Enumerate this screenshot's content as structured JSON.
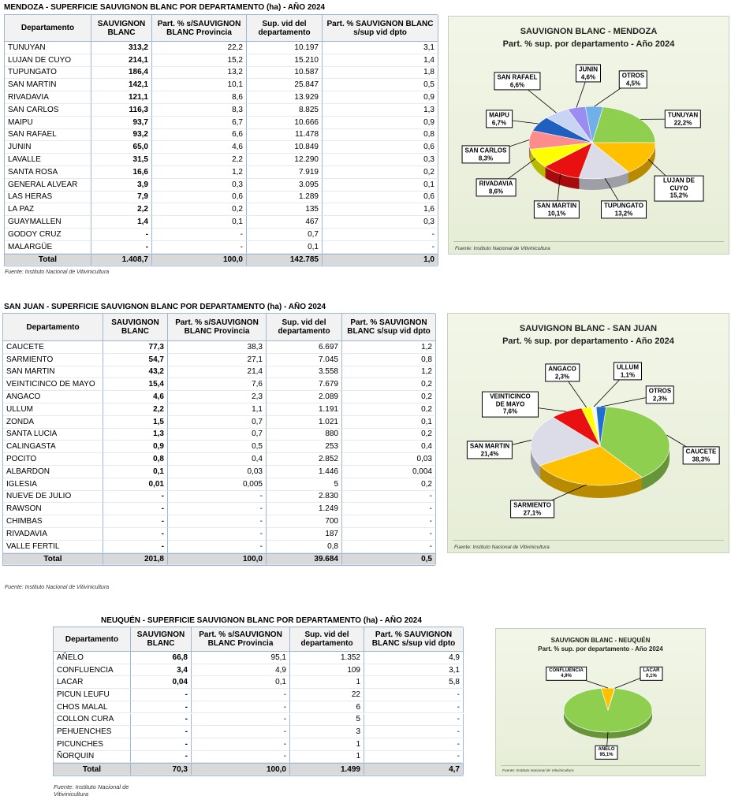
{
  "sections": [
    {
      "title": "MENDOZA - SUPERFICIE SAUVIGNON BLANC POR DEPARTAMENTO (ha) - AÑO 2024",
      "table": {
        "header": [
          "Departamento",
          "SAUVIGNON BLANC",
          "Part. % s/SAUVIGNON BLANC Provincia",
          "Sup. vid del departamento",
          "Part. % SAUVIGNON BLANC s/sup vid dpto"
        ],
        "rows": [
          [
            "TUNUYAN",
            "313,2",
            "22,2",
            "10.197",
            "3,1"
          ],
          [
            "LUJAN DE CUYO",
            "214,1",
            "15,2",
            "15.210",
            "1,4"
          ],
          [
            "TUPUNGATO",
            "186,4",
            "13,2",
            "10.587",
            "1,8"
          ],
          [
            "SAN MARTIN",
            "142,1",
            "10,1",
            "25.847",
            "0,5"
          ],
          [
            "RIVADAVIA",
            "121,1",
            "8,6",
            "13.929",
            "0,9"
          ],
          [
            "SAN CARLOS",
            "116,3",
            "8,3",
            "8.825",
            "1,3"
          ],
          [
            "MAIPU",
            "93,7",
            "6,7",
            "10.666",
            "0,9"
          ],
          [
            "SAN RAFAEL",
            "93,2",
            "6,6",
            "11.478",
            "0,8"
          ],
          [
            "JUNIN",
            "65,0",
            "4,6",
            "10.849",
            "0,6"
          ],
          [
            "LAVALLE",
            "31,5",
            "2,2",
            "12.290",
            "0,3"
          ],
          [
            "SANTA ROSA",
            "16,6",
            "1,2",
            "7.919",
            "0,2"
          ],
          [
            "GENERAL ALVEAR",
            "3,9",
            "0,3",
            "3.095",
            "0,1"
          ],
          [
            "LAS HERAS",
            "7,9",
            "0,6",
            "1.289",
            "0,6"
          ],
          [
            "LA PAZ",
            "2,2",
            "0,2",
            "135",
            "1,6"
          ],
          [
            "GUAYMALLEN",
            "1,4",
            "0,1",
            "467",
            "0,3"
          ],
          [
            "GODOY CRUZ",
            "-",
            "-",
            "0,7",
            "-"
          ],
          [
            "MALARGÜE",
            "-",
            "-",
            "0,1",
            "-"
          ]
        ],
        "total": [
          "Total",
          "1.408,7",
          "100,0",
          "142.785",
          "1,0"
        ]
      },
      "source": "Fuente: Instituto Nacional de Vitivinicultura",
      "chart": {
        "type": "pie",
        "title": "SAUVIGNON BLANC - MENDOZA",
        "subtitle": "Part. % sup. por departamento - Año 2024",
        "categories": [
          "TUNUYAN",
          "LUJAN DE CUYO",
          "TUPUNGATO",
          "SAN MARTIN",
          "RIVADAVIA",
          "SAN CARLOS",
          "MAIPU",
          "SAN RAFAEL",
          "JUNIN",
          "OTROS"
        ],
        "values": [
          22.2,
          15.2,
          13.2,
          10.1,
          8.6,
          8.3,
          6.7,
          6.6,
          4.6,
          4.5
        ],
        "value_labels": [
          "22,2%",
          "15,2%",
          "13,2%",
          "10,1%",
          "8,6%",
          "8,3%",
          "6,7%",
          "6,6%",
          "4,6%",
          "4,5%"
        ],
        "colors": [
          "#8fcf4f",
          "#ffc000",
          "#dcdce8",
          "#e81010",
          "#ffff00",
          "#ff8c8c",
          "#1f5fc0",
          "#c8d4f4",
          "#9a8cf0",
          "#6fb0e8"
        ],
        "source": "Fuente: Instituto Nacional de Vitivinicultura"
      }
    },
    {
      "title": "SAN JUAN - SUPERFICIE SAUVIGNON BLANC POR DEPARTAMENTO (ha) - AÑO 2024",
      "table": {
        "header": [
          "Departamento",
          "SAUVIGNON BLANC",
          "Part. % s/SAUVIGNON BLANC Provincia",
          "Sup. vid del departamento",
          "Part. % SAUVIGNON BLANC s/sup vid dpto"
        ],
        "rows": [
          [
            "CAUCETE",
            "77,3",
            "38,3",
            "6.697",
            "1,2"
          ],
          [
            "SARMIENTO",
            "54,7",
            "27,1",
            "7.045",
            "0,8"
          ],
          [
            "SAN MARTIN",
            "43,2",
            "21,4",
            "3.558",
            "1,2"
          ],
          [
            "VEINTICINCO DE MAYO",
            "15,4",
            "7,6",
            "7.679",
            "0,2"
          ],
          [
            "ANGACO",
            "4,6",
            "2,3",
            "2.089",
            "0,2"
          ],
          [
            "ULLUM",
            "2,2",
            "1,1",
            "1.191",
            "0,2"
          ],
          [
            "ZONDA",
            "1,5",
            "0,7",
            "1.021",
            "0,1"
          ],
          [
            "SANTA LUCIA",
            "1,3",
            "0,7",
            "880",
            "0,2"
          ],
          [
            "CALINGASTA",
            "0,9",
            "0,5",
            "253",
            "0,4"
          ],
          [
            "POCITO",
            "0,8",
            "0,4",
            "2.852",
            "0,03"
          ],
          [
            "ALBARDON",
            "0,1",
            "0,03",
            "1.446",
            "0,004"
          ],
          [
            "IGLESIA",
            "0,01",
            "0,005",
            "5",
            "0,2"
          ],
          [
            "NUEVE DE JULIO",
            "-",
            "-",
            "2.830",
            "-"
          ],
          [
            "RAWSON",
            "-",
            "-",
            "1.249",
            "-"
          ],
          [
            "CHIMBAS",
            "-",
            "-",
            "700",
            "-"
          ],
          [
            "RIVADAVIA",
            "-",
            "-",
            "187",
            "-"
          ],
          [
            "VALLE FERTIL",
            "-",
            "-",
            "0,8",
            "-"
          ]
        ],
        "total": [
          "Total",
          "201,8",
          "100,0",
          "39.684",
          "0,5"
        ]
      },
      "source": "Fuente: Instituto Nacional de Vitivinicultura",
      "chart": {
        "type": "pie",
        "title": "SAUVIGNON BLANC - SAN JUAN",
        "subtitle": "Part. % sup. por departamento - Año 2024",
        "categories": [
          "CAUCETE",
          "SARMIENTO",
          "SAN MARTIN",
          "VEINTICINCO DE MAYO",
          "ANGACO",
          "ULLUM",
          "OTROS"
        ],
        "values": [
          38.3,
          27.1,
          21.4,
          7.6,
          2.3,
          1.1,
          2.3
        ],
        "value_labels": [
          "38,3%",
          "27,1%",
          "21,4%",
          "7,6%",
          "2,3%",
          "1,1%",
          "2,3%"
        ],
        "colors": [
          "#8fcf4f",
          "#ffc000",
          "#dcdce8",
          "#e81010",
          "#ffff00",
          "#f4f4f4",
          "#1f6fd0"
        ],
        "source": "Fuente: Instituto Nacional de Vitivinicultura"
      }
    },
    {
      "title": "NEUQUÉN - SUPERFICIE SAUVIGNON BLANC POR DEPARTAMENTO (ha) - AÑO 2024",
      "table": {
        "header": [
          "Departamento",
          "SAUVIGNON BLANC",
          "Part. % s/SAUVIGNON BLANC Provincia",
          "Sup. vid del departamento",
          "Part. % SAUVIGNON BLANC s/sup vid dpto"
        ],
        "rows": [
          [
            "AÑELO",
            "66,8",
            "95,1",
            "1.352",
            "4,9"
          ],
          [
            "CONFLUENCIA",
            "3,4",
            "4,9",
            "109",
            "3,1"
          ],
          [
            "LACAR",
            "0,04",
            "0,1",
            "1",
            "5,8"
          ],
          [
            "PICUN LEUFU",
            "-",
            "-",
            "22",
            "-"
          ],
          [
            "CHOS MALAL",
            "-",
            "-",
            "6",
            "-"
          ],
          [
            "COLLON CURA",
            "-",
            "-",
            "5",
            "-"
          ],
          [
            "PEHUENCHES",
            "-",
            "-",
            "3",
            "-"
          ],
          [
            "PICUNCHES",
            "-",
            "-",
            "1",
            "-"
          ],
          [
            "ÑORQUIN",
            "-",
            "-",
            "1",
            "-"
          ]
        ],
        "total": [
          "Total",
          "70,3",
          "100,0",
          "1.499",
          "4,7"
        ]
      },
      "source": "Fuente: Instituto Nacional de Vitivinicultura",
      "chart": {
        "type": "pie",
        "title": "SAUVIGNON BLANC - NEUQUÉN",
        "subtitle": "Part. % sup. por departamento - Año 2024",
        "categories": [
          "AÑELO",
          "CONFLUENCIA",
          "LACAR"
        ],
        "values": [
          95.1,
          4.9,
          0.1
        ],
        "value_labels": [
          "95,1%",
          "4,9%",
          "0,1%"
        ],
        "colors": [
          "#8fcf4f",
          "#ffc000",
          "#ff8c8c"
        ],
        "source": "Fuente: Instituto Nacional de Vitivinicultura"
      }
    }
  ]
}
